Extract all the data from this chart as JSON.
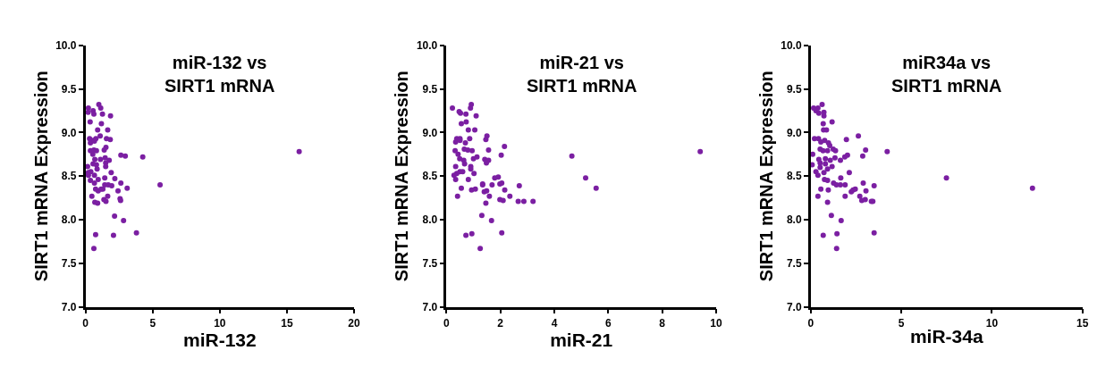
{
  "chart_data": [
    {
      "type": "scatter",
      "title": "miR-132 vs\nSIRT1 mRNA",
      "xlabel": "miR-132",
      "ylabel": "SIRT1 mRNA Expression",
      "color": "#7b1fa2",
      "marker": "circle",
      "x": [
        0.99,
        0.21,
        0.56,
        0.19,
        0.62,
        1.13,
        1.26,
        1.86,
        0.34,
        1.18,
        0.9,
        1.65,
        1.09,
        0.3,
        0.56,
        0.77,
        1.84,
        0.36,
        0.66,
        1.56,
        1.52,
        1.39,
        0.36,
        0.62,
        0.81,
        0.54,
        2.63,
        2.96,
        4.26,
        15.91,
        0.69,
        1.11,
        1.46,
        1.76,
        0.56,
        0.81,
        1.5,
        0.15,
        1.5,
        0.86,
        0.21,
        0.39,
        1.91,
        0.66,
        0.21,
        0.36,
        0.94,
        0.66,
        1.43,
        2.18,
        2.63,
        1.43,
        1.69,
        1.95,
        5.55,
        0.75,
        0.94,
        1.16,
        1.29,
        2.42,
        3.1,
        0.47,
        1.65,
        1.37,
        1.52,
        2.57,
        2.61,
        0.69,
        0.9,
        2.16,
        2.83,
        0.75,
        2.08,
        3.79,
        0.62
      ],
      "values": [
        9.32,
        9.28,
        9.25,
        9.23,
        9.21,
        9.28,
        9.21,
        9.19,
        9.12,
        9.1,
        9.03,
        9.03,
        8.96,
        8.93,
        8.91,
        8.93,
        8.92,
        8.88,
        8.9,
        8.93,
        8.83,
        8.8,
        8.79,
        8.8,
        8.79,
        8.75,
        8.74,
        8.73,
        8.72,
        8.78,
        8.69,
        8.69,
        8.71,
        8.68,
        8.64,
        8.63,
        8.65,
        8.61,
        8.61,
        8.58,
        8.54,
        8.55,
        8.54,
        8.51,
        8.51,
        8.45,
        8.46,
        8.42,
        8.48,
        8.47,
        8.42,
        8.4,
        8.4,
        8.39,
        8.4,
        8.35,
        8.33,
        8.35,
        8.35,
        8.33,
        8.36,
        8.27,
        8.27,
        8.23,
        8.21,
        8.24,
        8.22,
        8.2,
        8.19,
        8.04,
        7.99,
        7.83,
        7.82,
        7.85,
        7.67
      ],
      "xlim": [
        0,
        20
      ],
      "xticks": [
        0,
        5,
        10,
        15,
        20
      ],
      "ylim": [
        7,
        10
      ],
      "yticks": [
        {
          "value": 7,
          "label": "7.0"
        },
        {
          "value": 7.5,
          "label": "7.5"
        },
        {
          "value": 8,
          "label": "8.0"
        },
        {
          "value": 8.5,
          "label": "8.5"
        },
        {
          "value": 9,
          "label": "9.0"
        },
        {
          "value": 9.5,
          "label": "9.5"
        },
        {
          "value": 10,
          "label": "10.0"
        }
      ]
    },
    {
      "type": "scatter",
      "title": "miR-21 vs\nSIRT1 mRNA",
      "xlabel": "miR-21",
      "ylabel": "SIRT1 mRNA Expression",
      "color": "#7b1fa2",
      "marker": "circle",
      "x": [
        0.22,
        0.92,
        0.89,
        0.47,
        0.52,
        0.72,
        1.1,
        0.55,
        0.73,
        0.81,
        1.05,
        1.5,
        0.38,
        0.5,
        0.86,
        1.46,
        0.34,
        0.7,
        0.5,
        2.15,
        0.66,
        0.79,
        0.95,
        0.32,
        1.56,
        9.41,
        0.43,
        2.03,
        4.65,
        0.49,
        0.64,
        1.0,
        1.13,
        1.42,
        1.56,
        1.48,
        0.67,
        0.34,
        0.9,
        0.9,
        0.5,
        0.6,
        0.38,
        1.02,
        0.28,
        0.34,
        0.81,
        1.79,
        1.92,
        5.16,
        1.34,
        1.34,
        1.69,
        1.98,
        2.05,
        2.7,
        0.55,
        0.93,
        1.07,
        1.4,
        1.49,
        2.16,
        5.55,
        0.41,
        1.59,
        2.35,
        1.98,
        2.1,
        1.46,
        2.66,
        2.87,
        3.21,
        1.31,
        1.67,
        0.72,
        0.94,
        2.05,
        1.25
      ],
      "values": [
        9.28,
        9.32,
        9.28,
        9.24,
        9.22,
        9.21,
        9.19,
        9.1,
        9.12,
        9.03,
        9.03,
        8.96,
        8.93,
        8.93,
        8.93,
        8.92,
        8.89,
        8.88,
        8.91,
        8.84,
        8.81,
        8.8,
        8.79,
        8.79,
        8.8,
        8.78,
        8.75,
        8.74,
        8.73,
        8.7,
        8.68,
        8.7,
        8.72,
        8.69,
        8.68,
        8.65,
        8.64,
        8.61,
        8.61,
        8.58,
        8.55,
        8.55,
        8.53,
        8.53,
        8.51,
        8.46,
        8.46,
        8.48,
        8.49,
        8.48,
        8.41,
        8.4,
        8.4,
        8.41,
        8.42,
        8.39,
        8.36,
        8.34,
        8.35,
        8.32,
        8.33,
        8.34,
        8.36,
        8.27,
        8.27,
        8.27,
        8.23,
        8.22,
        8.19,
        8.21,
        8.21,
        8.21,
        8.05,
        7.99,
        7.82,
        7.84,
        7.85,
        7.67
      ],
      "xlim": [
        0,
        10
      ],
      "xticks": [
        0,
        2,
        4,
        6,
        8,
        10
      ],
      "ylim": [
        7,
        10
      ],
      "yticks": [
        {
          "value": 7,
          "label": "7.0"
        },
        {
          "value": 7.5,
          "label": "7.5"
        },
        {
          "value": 8,
          "label": "8.0"
        },
        {
          "value": 8.5,
          "label": "8.5"
        },
        {
          "value": 9,
          "label": "9.0"
        },
        {
          "value": 9.5,
          "label": "9.5"
        },
        {
          "value": 10,
          "label": "10.0"
        }
      ]
    },
    {
      "type": "scatter",
      "title": "miR34a vs\nSIRT1 mRNA",
      "xlabel": "miR-34a",
      "ylabel": "SIRT1 mRNA Expression",
      "color": "#7b1fa2",
      "marker": "circle",
      "x": [
        0.16,
        0.63,
        0.4,
        0.29,
        0.45,
        0.73,
        0.73,
        0.69,
        1.18,
        0.71,
        0.87,
        2.63,
        0.21,
        0.43,
        1.97,
        0.77,
        0.56,
        0.98,
        1.05,
        0.52,
        1.24,
        1.37,
        0.68,
        0.93,
        3.03,
        4.22,
        0.11,
        2.03,
        2.87,
        1.88,
        0.81,
        1.34,
        0.45,
        1.08,
        1.64,
        0.52,
        0.81,
        0.08,
        1.18,
        0.52,
        0.93,
        0.29,
        0.73,
        2.13,
        0.4,
        1.66,
        7.49,
        0.76,
        0.93,
        1.26,
        1.42,
        1.64,
        1.9,
        2.9,
        3.5,
        0.56,
        0.97,
        2.34,
        2.46,
        2.24,
        3.05,
        12.24,
        0.4,
        1.9,
        2.71,
        2.82,
        3.01,
        3.35,
        3.43,
        0.93,
        1.14,
        1.68,
        0.69,
        1.45,
        3.5,
        1.43
      ],
      "values": [
        9.28,
        9.32,
        9.28,
        9.25,
        9.22,
        9.23,
        9.19,
        9.1,
        9.12,
        9.03,
        9.03,
        8.96,
        8.93,
        8.93,
        8.92,
        8.91,
        8.89,
        8.88,
        8.85,
        8.81,
        8.81,
        8.79,
        8.79,
        8.79,
        8.8,
        8.78,
        8.75,
        8.74,
        8.73,
        8.72,
        8.7,
        8.71,
        8.69,
        8.68,
        8.68,
        8.65,
        8.64,
        8.63,
        8.61,
        8.6,
        8.58,
        8.55,
        8.54,
        8.54,
        8.51,
        8.48,
        8.48,
        8.46,
        8.45,
        8.42,
        8.4,
        8.4,
        8.4,
        8.42,
        8.39,
        8.35,
        8.34,
        8.34,
        8.35,
        8.32,
        8.33,
        8.36,
        8.27,
        8.27,
        8.27,
        8.22,
        8.23,
        8.21,
        8.21,
        8.2,
        8.05,
        7.99,
        7.82,
        7.84,
        7.85,
        7.67
      ],
      "xlim": [
        0,
        15
      ],
      "xticks": [
        0,
        5,
        10,
        15
      ],
      "ylim": [
        7,
        10
      ],
      "yticks": [
        {
          "value": 7,
          "label": "7.0"
        },
        {
          "value": 7.5,
          "label": "7.5"
        },
        {
          "value": 8,
          "label": "8.0"
        },
        {
          "value": 8.5,
          "label": "8.5"
        },
        {
          "value": 9,
          "label": "9.0"
        },
        {
          "value": 9.5,
          "label": "9.5"
        },
        {
          "value": 10,
          "label": "10.0"
        }
      ]
    }
  ]
}
